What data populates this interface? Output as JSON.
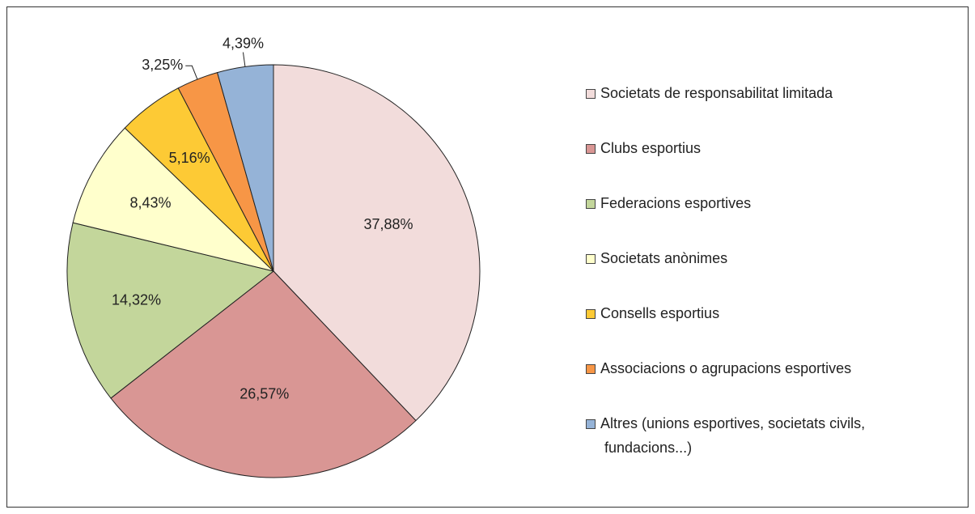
{
  "chart_data": {
    "type": "pie",
    "categories": [
      "Societats de responsabilitat limitada",
      "Clubs esportius",
      "Federacions esportives",
      "Societats anònimes",
      "Consells esportius",
      "Associacions o agrupacions esportives",
      "Altres (unions esportives, societats civils, fundacions...)"
    ],
    "values": [
      37.88,
      26.57,
      14.32,
      8.43,
      5.16,
      3.25,
      4.39
    ],
    "value_labels": [
      "37,88%",
      "26,57%",
      "14,32%",
      "8,43%",
      "5,16%",
      "3,25%",
      "4,39%"
    ],
    "colors": [
      "#f2dcdb",
      "#d99694",
      "#c3d69b",
      "#ffffcc",
      "#fdca35",
      "#f79646",
      "#95b3d7"
    ],
    "legend": "right"
  }
}
